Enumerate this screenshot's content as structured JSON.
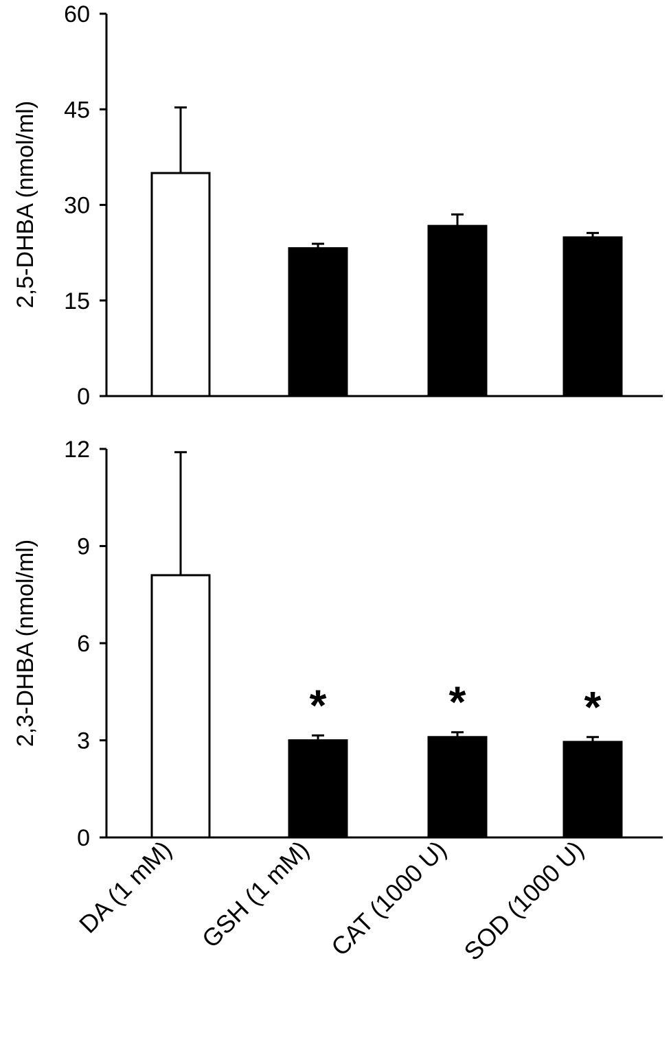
{
  "chart_data": [
    {
      "type": "bar",
      "categories": [
        "DA (1 mM)",
        "GSH (1 mM)",
        "CAT (1000 U)",
        "SOD (1000 U)"
      ],
      "values": [
        35,
        23.2,
        26.7,
        24.9
      ],
      "errors": [
        10.3,
        0.7,
        1.8,
        0.7
      ],
      "bar_colors": [
        "#ffffff",
        "#000000",
        "#000000",
        "#000000"
      ],
      "significance": [
        "",
        "",
        "",
        ""
      ],
      "ylabel": "2,5-DHBA (nmol/ml)",
      "ylim": [
        0,
        60
      ],
      "yticks": [
        "0",
        "15",
        "30",
        "45",
        "60"
      ],
      "grid": false
    },
    {
      "type": "bar",
      "categories": [
        "DA (1 mM)",
        "GSH (1 mM)",
        "CAT (1000 U)",
        "SOD (1000 U)"
      ],
      "values": [
        8.1,
        3.0,
        3.1,
        2.95
      ],
      "errors": [
        3.8,
        0.15,
        0.15,
        0.15
      ],
      "bar_colors": [
        "#ffffff",
        "#000000",
        "#000000",
        "#000000"
      ],
      "significance": [
        "",
        "*",
        "*",
        "*"
      ],
      "ylabel": "2,3-DHBA (nmol/ml)",
      "ylim": [
        0,
        12
      ],
      "yticks": [
        "0",
        "3",
        "6",
        "9",
        "12"
      ],
      "grid": false
    }
  ],
  "x_labels": [
    "DA (1 mM)",
    "GSH (1 mM)",
    "CAT (1000 U)",
    "SOD (1000 U)"
  ]
}
